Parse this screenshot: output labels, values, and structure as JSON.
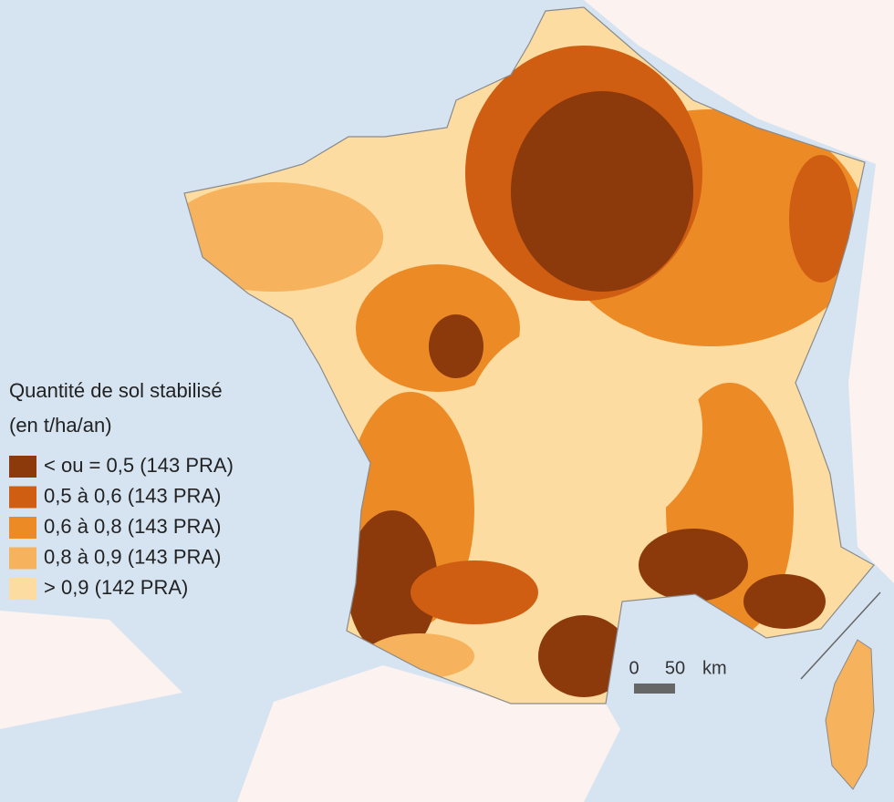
{
  "legend": {
    "title": "Quantité de sol stabilisé",
    "subtitle": "(en t/ha/an)",
    "items": [
      {
        "label": "< ou = 0,5 (143 PRA)",
        "color": "#8c3a0b"
      },
      {
        "label": "0,5 à 0,6 (143 PRA)",
        "color": "#cf5e12"
      },
      {
        "label": "0,6 à 0,8 (143 PRA)",
        "color": "#ec8a26"
      },
      {
        "label": "0,8 à 0,9 (143 PRA)",
        "color": "#f6b25c"
      },
      {
        "label": "> 0,9 (142 PRA)",
        "color": "#fcdca0"
      }
    ]
  },
  "scale": {
    "ticks": [
      0,
      50
    ],
    "unit": "km"
  }
}
